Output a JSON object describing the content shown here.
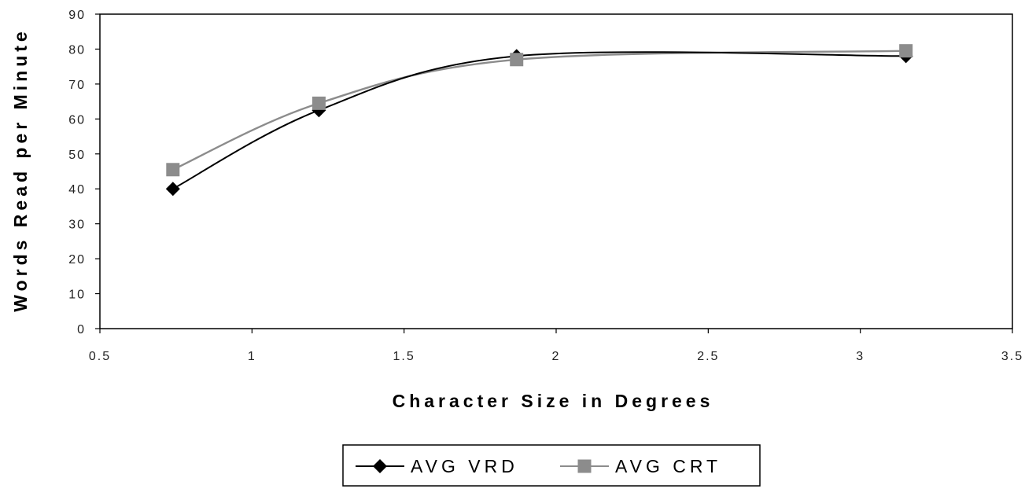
{
  "chart_data": {
    "type": "line",
    "title": "",
    "xlabel": "Character Size in Degrees",
    "ylabel": "Words Read per Minute",
    "xlim": [
      0.5,
      3.5
    ],
    "ylim": [
      0,
      90
    ],
    "x_ticks": [
      "0.5",
      "1",
      "1.5",
      "2",
      "2.5",
      "3",
      "3.5"
    ],
    "y_ticks": [
      "0",
      "10",
      "20",
      "30",
      "40",
      "50",
      "60",
      "70",
      "80",
      "90"
    ],
    "grid": false,
    "legend_position": "bottom",
    "series": [
      {
        "name": "AVG VRD",
        "marker": "diamond",
        "color": "#000000",
        "points": [
          [
            0.74,
            40
          ],
          [
            1.22,
            62.5
          ],
          [
            1.87,
            78
          ],
          [
            3.15,
            78
          ]
        ]
      },
      {
        "name": "AVG CRT",
        "marker": "square",
        "color": "#8c8c8c",
        "points": [
          [
            0.74,
            45.5
          ],
          [
            1.22,
            64.5
          ],
          [
            1.87,
            77
          ],
          [
            3.15,
            79.5
          ]
        ]
      }
    ]
  }
}
